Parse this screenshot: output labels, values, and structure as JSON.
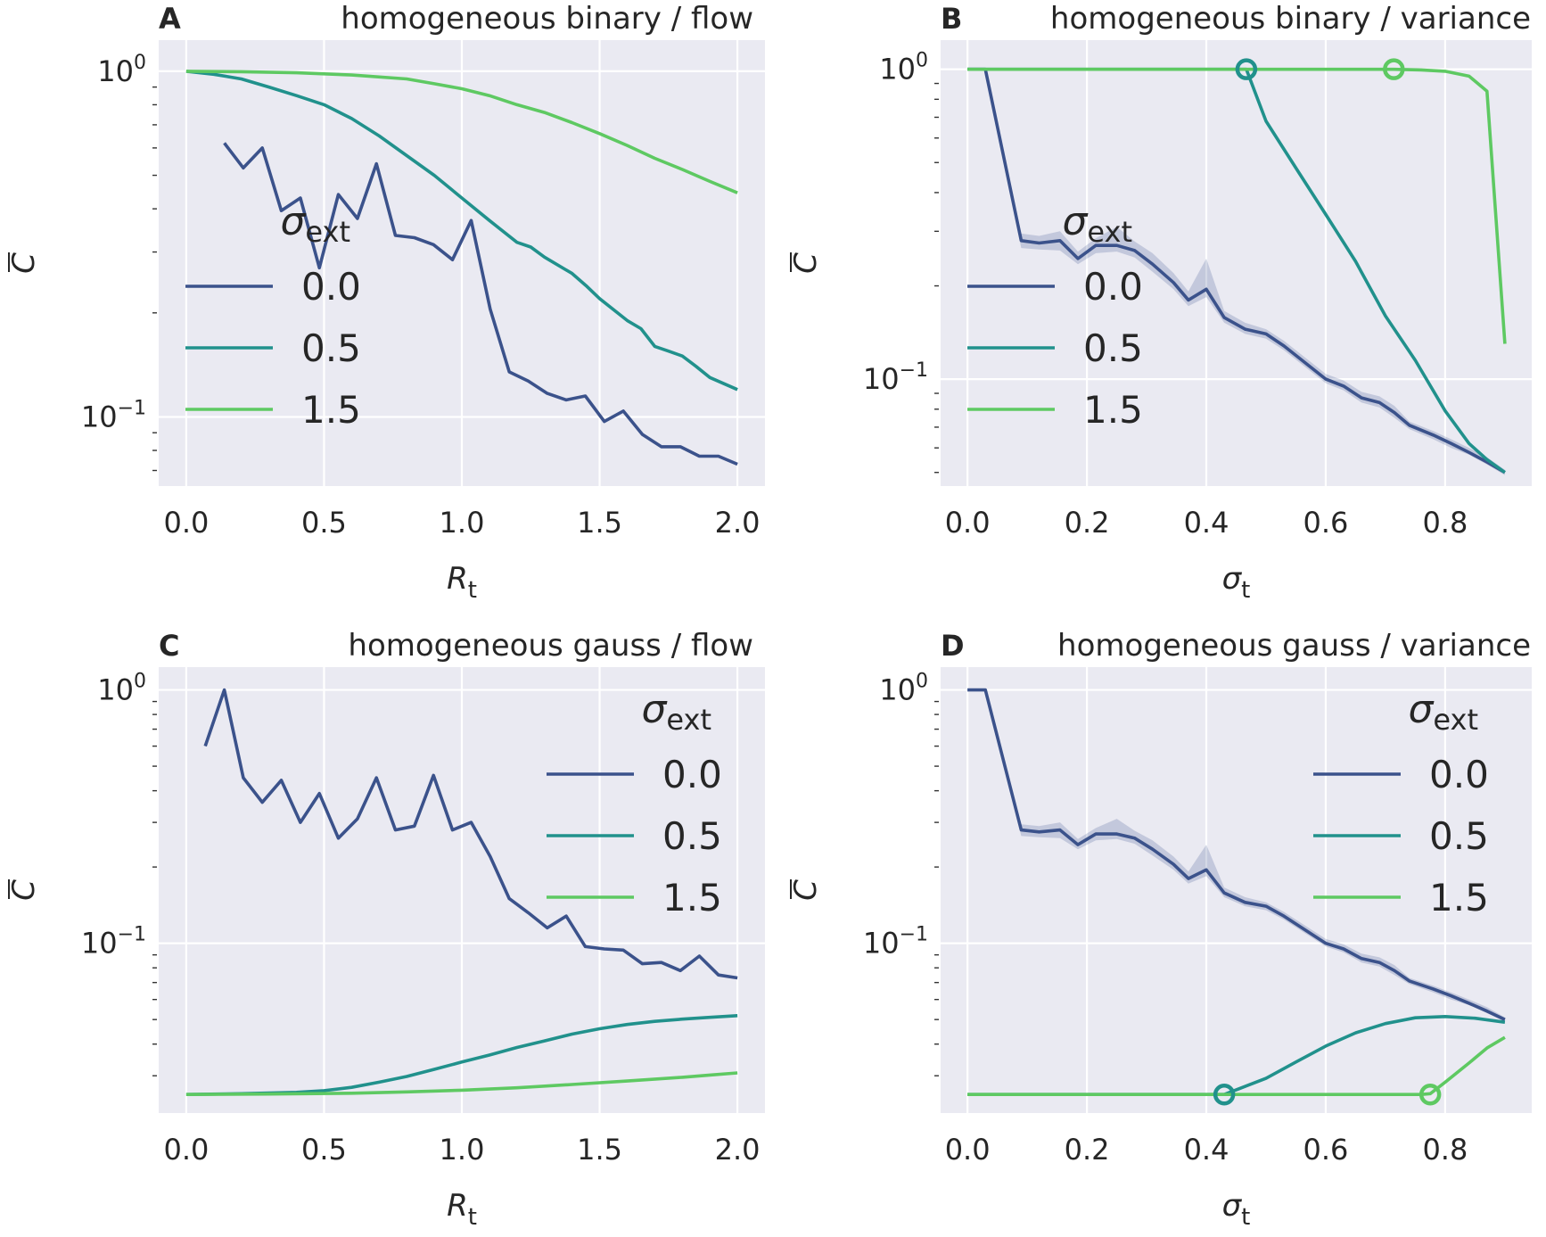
{
  "colors": {
    "s0": "#3b528b",
    "s05": "#21918c",
    "s15": "#5ec962",
    "bg": "#eaeaf2",
    "grid": "#ffffff"
  },
  "legend": {
    "title_sym": "σ",
    "title_sub": "ext",
    "labels": [
      "0.0",
      "0.5",
      "1.5"
    ]
  },
  "ylabel": "C",
  "chart_data": [
    {
      "id": "A",
      "letter": "A",
      "title": "homogeneous binary / flow",
      "type": "line",
      "xlabel_sym": "R",
      "xlabel_sub": "t",
      "xlim": [
        -0.1,
        2.1
      ],
      "ylim_log10": [
        -1.2,
        0.09
      ],
      "yscale": "log",
      "xticks": [
        0.0,
        0.5,
        1.0,
        1.5,
        2.0
      ],
      "xtick_labels": [
        "0.0",
        "0.5",
        "1.0",
        "1.5",
        "2.0"
      ],
      "legend_pos": "center-left",
      "series": [
        {
          "name": "0.0",
          "x": [
            0.138,
            0.207,
            0.276,
            0.345,
            0.414,
            0.483,
            0.552,
            0.621,
            0.69,
            0.759,
            0.828,
            0.897,
            0.966,
            1.034,
            1.103,
            1.172,
            1.241,
            1.31,
            1.379,
            1.448,
            1.517,
            1.586,
            1.655,
            1.724,
            1.793,
            1.862,
            1.931,
            2.0
          ],
          "y": [
            0.62,
            0.525,
            0.6,
            0.395,
            0.43,
            0.27,
            0.44,
            0.375,
            0.54,
            0.335,
            0.33,
            0.315,
            0.285,
            0.37,
            0.205,
            0.135,
            0.127,
            0.117,
            0.112,
            0.115,
            0.097,
            0.104,
            0.089,
            0.082,
            0.082,
            0.077,
            0.077,
            0.073
          ]
        },
        {
          "name": "0.5",
          "x": [
            0.0,
            0.1,
            0.2,
            0.3,
            0.4,
            0.5,
            0.6,
            0.7,
            0.8,
            0.9,
            1.0,
            1.1,
            1.2,
            1.25,
            1.3,
            1.4,
            1.45,
            1.5,
            1.6,
            1.65,
            1.7,
            1.75,
            1.8,
            1.85,
            1.9,
            2.0
          ],
          "y": [
            1.0,
            0.98,
            0.95,
            0.9,
            0.85,
            0.8,
            0.73,
            0.65,
            0.57,
            0.5,
            0.43,
            0.37,
            0.32,
            0.31,
            0.29,
            0.26,
            0.24,
            0.22,
            0.19,
            0.18,
            0.16,
            0.155,
            0.15,
            0.14,
            0.13,
            0.12
          ]
        },
        {
          "name": "1.5",
          "x": [
            0.0,
            0.2,
            0.4,
            0.6,
            0.8,
            0.9,
            1.0,
            1.1,
            1.2,
            1.3,
            1.4,
            1.5,
            1.6,
            1.7,
            1.8,
            1.9,
            2.0
          ],
          "y": [
            1.0,
            0.997,
            0.99,
            0.975,
            0.95,
            0.92,
            0.89,
            0.85,
            0.8,
            0.76,
            0.71,
            0.66,
            0.61,
            0.56,
            0.52,
            0.48,
            0.445
          ]
        }
      ],
      "markers": []
    },
    {
      "id": "B",
      "letter": "B",
      "title": "homogeneous binary / variance",
      "type": "line",
      "xlabel_sym": "σ",
      "xlabel_sub": "t",
      "xlim": [
        -0.045,
        0.945
      ],
      "ylim_log10": [
        -1.345,
        0.094
      ],
      "yscale": "log",
      "xticks": [
        0.0,
        0.2,
        0.4,
        0.6,
        0.8
      ],
      "xtick_labels": [
        "0.0",
        "0.2",
        "0.4",
        "0.6",
        "0.8"
      ],
      "legend_pos": "center-left",
      "series": [
        {
          "name": "0.0",
          "x": [
            0.0,
            0.03,
            0.09,
            0.12,
            0.155,
            0.185,
            0.215,
            0.25,
            0.28,
            0.31,
            0.345,
            0.37,
            0.4,
            0.43,
            0.465,
            0.5,
            0.53,
            0.6,
            0.63,
            0.66,
            0.69,
            0.715,
            0.74,
            0.78,
            0.81,
            0.84,
            0.87,
            0.9
          ],
          "y": [
            1.0,
            1.0,
            0.28,
            0.275,
            0.28,
            0.245,
            0.27,
            0.27,
            0.26,
            0.235,
            0.205,
            0.18,
            0.195,
            0.158,
            0.145,
            0.14,
            0.128,
            0.1,
            0.095,
            0.087,
            0.084,
            0.078,
            0.071,
            0.066,
            0.062,
            0.058,
            0.054,
            0.05
          ],
          "band_lo": [
            1.0,
            1.0,
            0.265,
            0.262,
            0.26,
            0.235,
            0.255,
            0.258,
            0.247,
            0.222,
            0.195,
            0.172,
            0.184,
            0.152,
            0.14,
            0.135,
            0.124,
            0.097,
            0.092,
            0.084,
            0.081,
            0.075,
            0.069,
            0.064,
            0.06,
            0.057,
            0.053,
            0.049
          ],
          "band_hi": [
            1.0,
            1.0,
            0.295,
            0.29,
            0.3,
            0.258,
            0.285,
            0.31,
            0.278,
            0.255,
            0.22,
            0.192,
            0.245,
            0.166,
            0.152,
            0.145,
            0.133,
            0.104,
            0.099,
            0.091,
            0.088,
            0.082,
            0.073,
            0.068,
            0.064,
            0.06,
            0.056,
            0.051
          ]
        },
        {
          "name": "0.5",
          "x": [
            0.0,
            0.467,
            0.5,
            0.55,
            0.6,
            0.65,
            0.7,
            0.75,
            0.8,
            0.84,
            0.87,
            0.9
          ],
          "y": [
            1.0,
            1.0,
            0.68,
            0.48,
            0.34,
            0.24,
            0.16,
            0.115,
            0.079,
            0.062,
            0.055,
            0.05
          ]
        },
        {
          "name": "1.5",
          "x": [
            0.0,
            0.5,
            0.714,
            0.76,
            0.8,
            0.84,
            0.87,
            0.9
          ],
          "y": [
            1.0,
            1.0,
            1.0,
            0.995,
            0.985,
            0.95,
            0.85,
            0.13
          ]
        }
      ],
      "markers": [
        {
          "series": "0.5",
          "x": 0.467,
          "y": 1.0
        },
        {
          "series": "1.5",
          "x": 0.714,
          "y": 1.0
        }
      ]
    },
    {
      "id": "C",
      "letter": "C",
      "title": "homogeneous gauss / flow",
      "type": "line",
      "xlabel_sym": "R",
      "xlabel_sub": "t",
      "xlim": [
        -0.1,
        2.1
      ],
      "ylim_log10": [
        -1.67,
        0.09
      ],
      "yscale": "log",
      "xticks": [
        0.0,
        0.5,
        1.0,
        1.5,
        2.0
      ],
      "xtick_labels": [
        "0.0",
        "0.5",
        "1.0",
        "1.5",
        "2.0"
      ],
      "legend_pos": "top-right",
      "series": [
        {
          "name": "0.0",
          "x": [
            0.069,
            0.138,
            0.207,
            0.276,
            0.345,
            0.414,
            0.483,
            0.552,
            0.621,
            0.69,
            0.759,
            0.828,
            0.897,
            0.966,
            1.034,
            1.103,
            1.172,
            1.241,
            1.31,
            1.379,
            1.448,
            1.517,
            1.586,
            1.655,
            1.724,
            1.793,
            1.862,
            1.931,
            2.0
          ],
          "y": [
            0.6,
            1.0,
            0.45,
            0.36,
            0.44,
            0.3,
            0.39,
            0.26,
            0.31,
            0.45,
            0.28,
            0.29,
            0.46,
            0.28,
            0.3,
            0.22,
            0.15,
            0.132,
            0.115,
            0.128,
            0.097,
            0.095,
            0.094,
            0.083,
            0.084,
            0.078,
            0.089,
            0.075,
            0.073
          ]
        },
        {
          "name": "0.5",
          "x": [
            0.0,
            0.2,
            0.4,
            0.5,
            0.6,
            0.7,
            0.8,
            0.9,
            1.0,
            1.1,
            1.2,
            1.3,
            1.4,
            1.5,
            1.6,
            1.7,
            1.8,
            1.9,
            2.0
          ],
          "y": [
            0.0253,
            0.0255,
            0.0258,
            0.0262,
            0.027,
            0.0283,
            0.0298,
            0.0318,
            0.034,
            0.0362,
            0.0388,
            0.0412,
            0.0438,
            0.046,
            0.0478,
            0.0492,
            0.0502,
            0.051,
            0.0518
          ]
        },
        {
          "name": "1.5",
          "x": [
            0.0,
            0.3,
            0.6,
            0.8,
            1.0,
            1.2,
            1.4,
            1.6,
            1.8,
            1.9,
            2.0
          ],
          "y": [
            0.0253,
            0.0254,
            0.0256,
            0.0259,
            0.0263,
            0.0269,
            0.0277,
            0.0286,
            0.0296,
            0.0302,
            0.0308
          ]
        }
      ],
      "markers": []
    },
    {
      "id": "D",
      "letter": "D",
      "title": "homogeneous gauss / variance",
      "type": "line",
      "xlabel_sym": "σ",
      "xlabel_sub": "t",
      "xlim": [
        -0.045,
        0.945
      ],
      "ylim_log10": [
        -1.67,
        0.09
      ],
      "yscale": "log",
      "xticks": [
        0.0,
        0.2,
        0.4,
        0.6,
        0.8
      ],
      "xtick_labels": [
        "0.0",
        "0.2",
        "0.4",
        "0.6",
        "0.8"
      ],
      "legend_pos": "top-right",
      "series": [
        {
          "name": "0.0",
          "x": [
            0.0,
            0.03,
            0.09,
            0.12,
            0.155,
            0.185,
            0.215,
            0.25,
            0.28,
            0.31,
            0.345,
            0.37,
            0.4,
            0.43,
            0.465,
            0.5,
            0.53,
            0.6,
            0.63,
            0.66,
            0.69,
            0.715,
            0.74,
            0.78,
            0.81,
            0.84,
            0.87,
            0.9
          ],
          "y": [
            1.0,
            1.0,
            0.28,
            0.275,
            0.28,
            0.245,
            0.27,
            0.27,
            0.26,
            0.235,
            0.205,
            0.18,
            0.195,
            0.158,
            0.145,
            0.14,
            0.128,
            0.1,
            0.095,
            0.087,
            0.084,
            0.078,
            0.071,
            0.066,
            0.062,
            0.058,
            0.054,
            0.05
          ],
          "band_lo": [
            1.0,
            1.0,
            0.265,
            0.262,
            0.26,
            0.235,
            0.255,
            0.258,
            0.247,
            0.222,
            0.195,
            0.172,
            0.184,
            0.152,
            0.14,
            0.135,
            0.124,
            0.097,
            0.092,
            0.084,
            0.081,
            0.075,
            0.069,
            0.064,
            0.06,
            0.057,
            0.053,
            0.049
          ],
          "band_hi": [
            1.0,
            1.0,
            0.295,
            0.29,
            0.3,
            0.258,
            0.285,
            0.31,
            0.278,
            0.255,
            0.22,
            0.192,
            0.245,
            0.166,
            0.152,
            0.145,
            0.133,
            0.104,
            0.099,
            0.091,
            0.088,
            0.082,
            0.073,
            0.068,
            0.064,
            0.06,
            0.056,
            0.051
          ]
        },
        {
          "name": "0.5",
          "x": [
            0.0,
            0.2,
            0.43,
            0.5,
            0.55,
            0.6,
            0.65,
            0.7,
            0.75,
            0.8,
            0.85,
            0.9
          ],
          "y": [
            0.0253,
            0.0253,
            0.0253,
            0.0293,
            0.034,
            0.0393,
            0.0443,
            0.0482,
            0.0508,
            0.0514,
            0.0506,
            0.0488
          ]
        },
        {
          "name": "1.5",
          "x": [
            0.0,
            0.5,
            0.76,
            0.775,
            0.8,
            0.84,
            0.87,
            0.9
          ],
          "y": [
            0.0253,
            0.0253,
            0.0253,
            0.0255,
            0.0283,
            0.0337,
            0.0386,
            0.0425
          ]
        }
      ],
      "markers": [
        {
          "series": "0.5",
          "x": 0.43,
          "y": 0.0253
        },
        {
          "series": "1.5",
          "x": 0.775,
          "y": 0.0253
        }
      ]
    }
  ]
}
